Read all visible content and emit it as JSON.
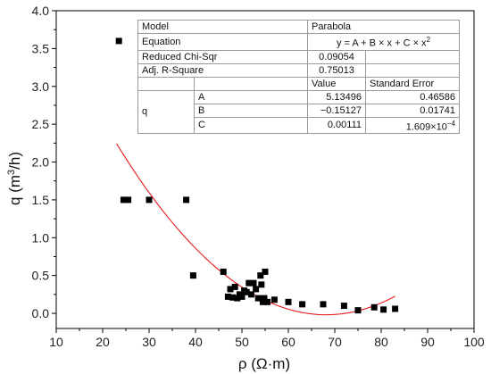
{
  "chart_data": {
    "type": "scatter",
    "title": "",
    "xlabel": "ρ (Ω·m)",
    "ylabel_base": "q (m",
    "ylabel_sup": "3",
    "ylabel_tail": "/h)",
    "xlim": [
      10,
      100
    ],
    "ylim": [
      -0.2,
      4.0
    ],
    "xticks": [
      "10",
      "20",
      "30",
      "40",
      "50",
      "60",
      "70",
      "80",
      "90",
      "100"
    ],
    "xtick_values": [
      10,
      20,
      30,
      40,
      50,
      60,
      70,
      80,
      90,
      100
    ],
    "yticks": [
      "0.0",
      "0.5",
      "1.0",
      "1.5",
      "2.0",
      "2.5",
      "3.0",
      "3.5",
      "4.0"
    ],
    "ytick_values": [
      0,
      0.5,
      1.0,
      1.5,
      2.0,
      2.5,
      3.0,
      3.5,
      4.0
    ],
    "grid": false,
    "marker_color": "#000000",
    "fit_color": "#e8191c",
    "points": [
      [
        23.5,
        3.6
      ],
      [
        24.5,
        1.5
      ],
      [
        25.5,
        1.5
      ],
      [
        30,
        1.5
      ],
      [
        38,
        1.5
      ],
      [
        39.5,
        0.5
      ],
      [
        46,
        0.55
      ],
      [
        47,
        0.22
      ],
      [
        47.5,
        0.32
      ],
      [
        48,
        0.21
      ],
      [
        48.5,
        0.35
      ],
      [
        49,
        0.2
      ],
      [
        49.5,
        0.25
      ],
      [
        50,
        0.22
      ],
      [
        50.5,
        0.3
      ],
      [
        51,
        0.28
      ],
      [
        51.5,
        0.4
      ],
      [
        52,
        0.25
      ],
      [
        52.5,
        0.4
      ],
      [
        53,
        0.32
      ],
      [
        53.5,
        0.2
      ],
      [
        54,
        0.5
      ],
      [
        54.2,
        0.38
      ],
      [
        54.5,
        0.15
      ],
      [
        54.8,
        0.2
      ],
      [
        55,
        0.55
      ],
      [
        55.5,
        0.15
      ],
      [
        57,
        0.18
      ],
      [
        60,
        0.15
      ],
      [
        63,
        0.12
      ],
      [
        67.5,
        0.12
      ],
      [
        72,
        0.1
      ],
      [
        75,
        0.04
      ],
      [
        78.5,
        0.08
      ],
      [
        80.5,
        0.05
      ],
      [
        83,
        0.06
      ]
    ],
    "fit": {
      "A": 5.13496,
      "B": -0.15127,
      "C": 0.00111,
      "x_range": [
        23,
        83
      ]
    }
  },
  "fit_table": {
    "model_label": "Model",
    "model_value": "Parabola",
    "equation_label": "Equation",
    "equation_prefix": "y = A + B × x + C × x",
    "equation_sup": "2",
    "chisq_label": "Reduced Chi-Sqr",
    "chisq_value": "0.09054",
    "r2_label": "Adj. R-Square",
    "r2_value": "0.75013",
    "value_header": "Value",
    "error_header": "Standard Error",
    "param_group": "q",
    "params": [
      {
        "name": "A",
        "value": "5.13496",
        "error": "0.46586"
      },
      {
        "name": "B",
        "value": "−0.15127",
        "error": "0.01741"
      },
      {
        "name": "C",
        "value": "0.00111",
        "error_base": "1.609×10",
        "error_sup": "−4"
      }
    ]
  }
}
